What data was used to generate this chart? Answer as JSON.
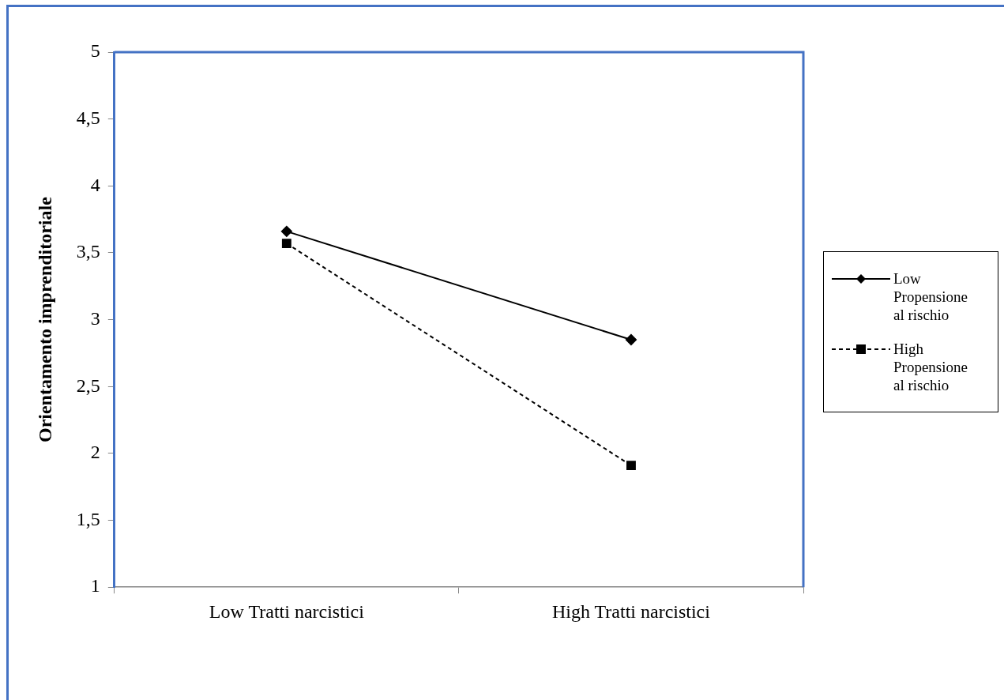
{
  "chart_data": {
    "type": "line",
    "ylabel": "Orientamento imprenditoriale",
    "categories": [
      "Low Tratti narcistici",
      "High Tratti narcistici"
    ],
    "series": [
      {
        "name": "Low Propensione al rischio",
        "color": "#000000",
        "values": [
          3.66,
          2.85
        ],
        "marker": "diamond",
        "line_style": "solid"
      },
      {
        "name": "High Propensione al rischio",
        "color": "#000000",
        "values": [
          3.57,
          1.91
        ],
        "marker": "square",
        "line_style": "dashed"
      }
    ],
    "ylim": [
      1,
      5
    ],
    "yticks": [
      1,
      {
        "value": 1.5,
        "label": "1,5"
      },
      2,
      {
        "value": 2.5,
        "label": "2,5"
      },
      3,
      {
        "value": 3.5,
        "label": "3,5"
      },
      4,
      {
        "value": 4.5,
        "label": "4,5"
      },
      5
    ],
    "grid": false,
    "legend": "right"
  }
}
